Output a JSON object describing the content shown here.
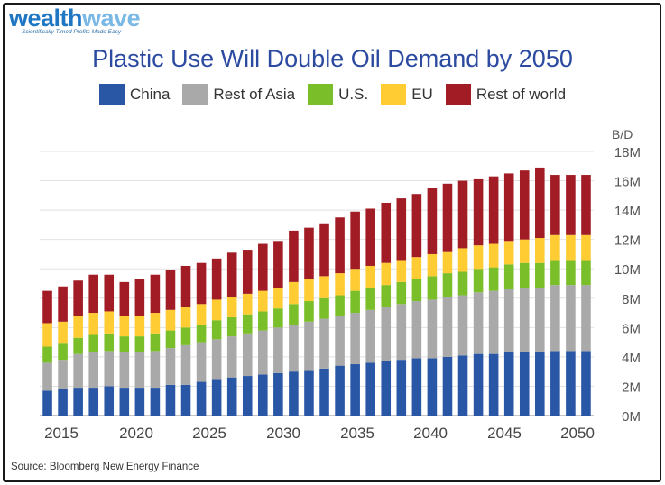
{
  "brand": {
    "name_part1": "wealth",
    "name_part2": "wave",
    "tagline": "Scientifically Timed Profits Made Easy"
  },
  "source": "Source:  Bloomberg New Energy Finance",
  "colors": {
    "China": "#2a56a6",
    "Rest of Asia": "#a9a9a9",
    "U.S.": "#7abf29",
    "EU": "#ffcc33",
    "Rest of world": "#a11c24"
  },
  "chart_data": {
    "type": "bar",
    "stacked": true,
    "title": "Plastic Use Will Double Oil Demand by 2050",
    "ylabel": "B/D",
    "ylim": [
      0,
      18
    ],
    "yticks": [
      0,
      2,
      4,
      6,
      8,
      10,
      12,
      14,
      16,
      18
    ],
    "ytick_labels": [
      "0M",
      "2M",
      "4M",
      "6M",
      "8M",
      "10M",
      "12M",
      "14M",
      "16M",
      "18M"
    ],
    "xtick_labels": [
      "2015",
      "2020",
      "2025",
      "2030",
      "2035",
      "2040",
      "2045",
      "2050"
    ],
    "legend_position": "top",
    "grid": "horizontal",
    "categories": [
      2015,
      2016,
      2017,
      2018,
      2019,
      2020,
      2021,
      2022,
      2023,
      2024,
      2025,
      2026,
      2027,
      2028,
      2029,
      2030,
      2031,
      2032,
      2033,
      2034,
      2035,
      2036,
      2037,
      2038,
      2039,
      2040,
      2041,
      2042,
      2043,
      2044,
      2045,
      2046,
      2047,
      2048,
      2049,
      2050
    ],
    "series": [
      {
        "name": "China",
        "values": [
          1.7,
          1.8,
          1.9,
          1.9,
          2.0,
          1.9,
          1.9,
          1.9,
          2.1,
          2.1,
          2.3,
          2.5,
          2.6,
          2.7,
          2.8,
          2.9,
          3.0,
          3.1,
          3.2,
          3.4,
          3.5,
          3.6,
          3.7,
          3.8,
          3.9,
          3.9,
          4.0,
          4.1,
          4.2,
          4.2,
          4.3,
          4.3,
          4.3,
          4.4,
          4.4,
          4.4
        ]
      },
      {
        "name": "Rest of Asia",
        "values": [
          1.9,
          2.0,
          2.3,
          2.4,
          2.4,
          2.4,
          2.4,
          2.5,
          2.5,
          2.7,
          2.7,
          2.7,
          2.8,
          2.9,
          3.0,
          3.1,
          3.2,
          3.3,
          3.4,
          3.4,
          3.5,
          3.6,
          3.7,
          3.8,
          3.9,
          4.0,
          4.1,
          4.1,
          4.2,
          4.3,
          4.3,
          4.4,
          4.4,
          4.5,
          4.5,
          4.5
        ]
      },
      {
        "name": "U.S.",
        "values": [
          1.1,
          1.1,
          1.1,
          1.2,
          1.2,
          1.1,
          1.1,
          1.2,
          1.2,
          1.2,
          1.2,
          1.3,
          1.3,
          1.3,
          1.3,
          1.3,
          1.4,
          1.4,
          1.4,
          1.4,
          1.5,
          1.5,
          1.5,
          1.5,
          1.5,
          1.6,
          1.6,
          1.6,
          1.6,
          1.6,
          1.7,
          1.7,
          1.7,
          1.7,
          1.7,
          1.7
        ]
      },
      {
        "name": "EU",
        "values": [
          1.6,
          1.5,
          1.5,
          1.5,
          1.5,
          1.4,
          1.4,
          1.4,
          1.4,
          1.4,
          1.4,
          1.4,
          1.4,
          1.4,
          1.4,
          1.4,
          1.5,
          1.5,
          1.5,
          1.5,
          1.5,
          1.5,
          1.5,
          1.5,
          1.5,
          1.5,
          1.5,
          1.6,
          1.6,
          1.6,
          1.6,
          1.6,
          1.7,
          1.7,
          1.7,
          1.7
        ]
      },
      {
        "name": "Rest of world",
        "values": [
          2.2,
          2.4,
          2.4,
          2.6,
          2.5,
          2.3,
          2.5,
          2.6,
          2.7,
          2.8,
          2.8,
          2.8,
          3.0,
          3.0,
          3.2,
          3.2,
          3.5,
          3.5,
          3.6,
          3.8,
          3.9,
          3.9,
          4.1,
          4.2,
          4.3,
          4.5,
          4.6,
          4.6,
          4.5,
          4.6,
          4.6,
          4.7,
          4.8,
          4.1,
          4.1,
          4.1
        ]
      }
    ]
  }
}
